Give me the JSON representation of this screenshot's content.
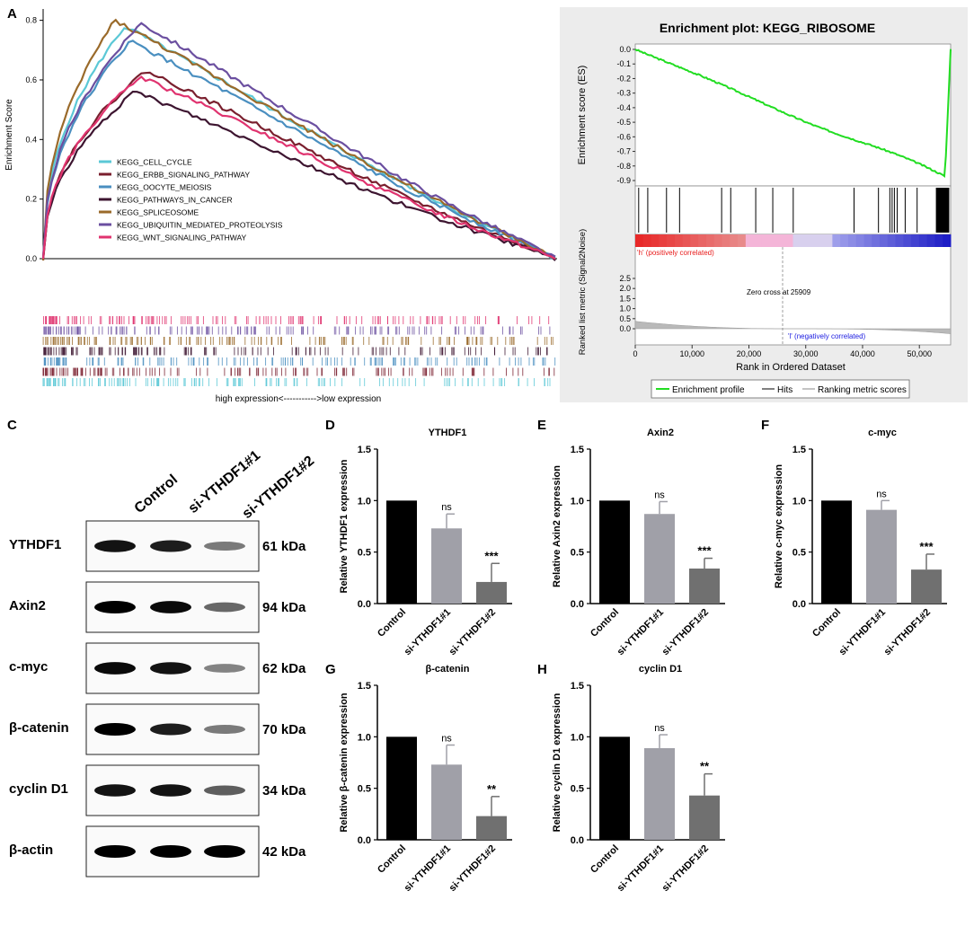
{
  "panel_labels": {
    "a": "A",
    "b": "B",
    "c": "C",
    "d": "D",
    "e": "E",
    "f": "F",
    "g": "G",
    "h": "H"
  },
  "colors": {
    "cell_cycle": "#5bc8d6",
    "erbb": "#7a1f2e",
    "oocyte": "#4a8fc0",
    "cancer": "#3d1530",
    "spliceosome": "#9a6a2a",
    "ubiquitin": "#6b4fa0",
    "wnt": "#e0336f",
    "bar_control": "#000000",
    "bar_si1": "#a0a0a8",
    "bar_si2": "#707070",
    "es_line": "#22dd22",
    "b_red": "#e81a1a",
    "b_blue": "#1a1ae0"
  },
  "chart_data": [
    {
      "panel": "A",
      "type": "line",
      "title": "",
      "ylabel": "Enrichment Score",
      "xlabel": "high expression<----------->low expression",
      "ylim": [
        -0.02,
        0.82
      ],
      "yticks": [
        "0.0",
        "0.2",
        "0.4",
        "0.6",
        "0.8"
      ],
      "series": [
        {
          "name": "KEGG_CELL_CYCLE",
          "key": "cell_cycle",
          "peak_x": 0.16,
          "peak_y": 0.78,
          "end_y": 0.0
        },
        {
          "name": "KEGG_ERBB_SIGNALING_PATHWAY",
          "key": "erbb",
          "peak_x": 0.2,
          "peak_y": 0.63,
          "end_y": 0.0
        },
        {
          "name": "KEGG_OOCYTE_MEIOSIS",
          "key": "oocyte",
          "peak_x": 0.17,
          "peak_y": 0.73,
          "end_y": 0.0
        },
        {
          "name": "KEGG_PATHWAYS_IN_CANCER",
          "key": "cancer",
          "peak_x": 0.18,
          "peak_y": 0.56,
          "end_y": 0.0
        },
        {
          "name": "KEGG_SPLICEOSOME",
          "key": "spliceosome",
          "peak_x": 0.14,
          "peak_y": 0.8,
          "end_y": 0.0
        },
        {
          "name": "KEGG_UBIQUITIN_MEDIATED_PROTEOLYSIS",
          "key": "ubiquitin",
          "peak_x": 0.19,
          "peak_y": 0.79,
          "end_y": 0.0
        },
        {
          "name": "KEGG_WNT_SIGNALING_PATHWAY",
          "key": "wnt",
          "peak_x": 0.19,
          "peak_y": 0.61,
          "end_y": 0.0
        }
      ]
    },
    {
      "panel": "B",
      "type": "line",
      "title": "Enrichment plot: KEGG_RIBOSOME",
      "ylabel": "Enrichment score (ES)",
      "ylim": [
        -0.92,
        0.02
      ],
      "yticks": [
        "0.0",
        "-0.1",
        "-0.2",
        "-0.3",
        "-0.4",
        "-0.5",
        "-0.6",
        "-0.7",
        "-0.8",
        "-0.9"
      ],
      "min_es": -0.88,
      "min_rank": 54500,
      "metric_ylabel": "Ranked list metric (Signal2Noise)",
      "metric_yticks": [
        "2.5",
        "2.0",
        "1.5",
        "1.0",
        "0.5",
        "0.0"
      ],
      "xlabel": "Rank in Ordered Dataset",
      "xticks": [
        "0",
        "10,000",
        "20,000",
        "30,000",
        "40,000",
        "50,000"
      ],
      "zero_cross_label": "Zero cross at 25909",
      "zero_cross": 25909,
      "pos_label": "'h' (positively correlated)",
      "neg_label": "'l' (negatively correlated)",
      "legend": [
        "Enrichment profile",
        "Hits",
        "Ranking metric scores"
      ]
    },
    {
      "panel": "D",
      "type": "bar",
      "title": "YTHDF1",
      "ylabel": "Relative YTHDF1 expression",
      "categories": [
        "Control",
        "si-YTHDF1#1",
        "si-YTHDF1#2"
      ],
      "values": [
        1.0,
        0.73,
        0.21
      ],
      "errors": [
        0,
        0.14,
        0.18
      ],
      "sig": [
        "",
        "ns",
        "***"
      ],
      "ylim": [
        0,
        1.5
      ],
      "yticks": [
        "0.0",
        "0.5",
        "1.0",
        "1.5"
      ]
    },
    {
      "panel": "E",
      "type": "bar",
      "title": "Axin2",
      "ylabel": "Relative Axin2 expression",
      "categories": [
        "Control",
        "si-YTHDF1#1",
        "si-YTHDF1#2"
      ],
      "values": [
        1.0,
        0.87,
        0.34
      ],
      "errors": [
        0,
        0.12,
        0.1
      ],
      "sig": [
        "",
        "ns",
        "***"
      ],
      "ylim": [
        0,
        1.5
      ],
      "yticks": [
        "0.0",
        "0.5",
        "1.0",
        "1.5"
      ]
    },
    {
      "panel": "F",
      "type": "bar",
      "title": "c-myc",
      "ylabel": "Relative c-myc expression",
      "categories": [
        "Control",
        "si-YTHDF1#1",
        "si-YTHDF1#2"
      ],
      "values": [
        1.0,
        0.91,
        0.33
      ],
      "errors": [
        0,
        0.09,
        0.15
      ],
      "sig": [
        "",
        "ns",
        "***"
      ],
      "ylim": [
        0,
        1.5
      ],
      "yticks": [
        "0.0",
        "0.5",
        "1.0",
        "1.5"
      ]
    },
    {
      "panel": "G",
      "type": "bar",
      "title": "β-catenin",
      "ylabel": "Relative β-catenin expression",
      "categories": [
        "Control",
        "si-YTHDF1#1",
        "si-YTHDF1#2"
      ],
      "values": [
        1.0,
        0.73,
        0.23
      ],
      "errors": [
        0,
        0.19,
        0.19
      ],
      "sig": [
        "",
        "ns",
        "**"
      ],
      "ylim": [
        0,
        1.5
      ],
      "yticks": [
        "0.0",
        "0.5",
        "1.0",
        "1.5"
      ]
    },
    {
      "panel": "H",
      "type": "bar",
      "title": "cyclin D1",
      "ylabel": "Relative cyclin D1 expression",
      "categories": [
        "Control",
        "si-YTHDF1#1",
        "si-YTHDF1#2"
      ],
      "values": [
        1.0,
        0.89,
        0.43
      ],
      "errors": [
        0,
        0.13,
        0.21
      ],
      "sig": [
        "",
        "ns",
        "**"
      ],
      "ylim": [
        0,
        1.5
      ],
      "yticks": [
        "0.0",
        "0.5",
        "1.0",
        "1.5"
      ]
    }
  ],
  "western": {
    "columns": [
      "Control",
      "si-YTHDF1#1",
      "si-YTHDF1#2"
    ],
    "rows": [
      {
        "protein": "YTHDF1",
        "size": "61 kDa",
        "intensity": [
          0.9,
          0.85,
          0.35
        ]
      },
      {
        "protein": "Axin2",
        "size": "94 kDa",
        "intensity": [
          1.0,
          0.95,
          0.45
        ]
      },
      {
        "protein": "c-myc",
        "size": "62 kDa",
        "intensity": [
          0.95,
          0.9,
          0.3
        ]
      },
      {
        "protein": "β-catenin",
        "size": "70 kDa",
        "intensity": [
          1.0,
          0.85,
          0.35
        ]
      },
      {
        "protein": "cyclin D1",
        "size": "34 kDa",
        "intensity": [
          0.9,
          0.9,
          0.5
        ]
      },
      {
        "protein": "β-actin",
        "size": "42 kDa",
        "intensity": [
          1.0,
          1.0,
          1.0
        ]
      }
    ]
  }
}
